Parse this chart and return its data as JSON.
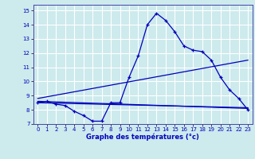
{
  "xlabel": "Graphe des températures (°c)",
  "xlim": [
    -0.5,
    23.5
  ],
  "ylim": [
    7,
    15.4
  ],
  "yticks": [
    7,
    8,
    9,
    10,
    11,
    12,
    13,
    14,
    15
  ],
  "xticks": [
    0,
    1,
    2,
    3,
    4,
    5,
    6,
    7,
    8,
    9,
    10,
    11,
    12,
    13,
    14,
    15,
    16,
    17,
    18,
    19,
    20,
    21,
    22,
    23
  ],
  "bg_color": "#cdeaed",
  "grid_color": "#ffffff",
  "line_color": "#0000bb",
  "lines": [
    {
      "x": [
        0,
        1,
        2,
        3,
        4,
        5,
        6,
        7,
        8,
        9,
        10,
        11,
        12,
        13,
        14,
        15,
        16,
        17,
        18,
        19,
        20,
        21,
        22,
        23
      ],
      "y": [
        8.5,
        8.6,
        8.4,
        8.3,
        7.9,
        7.6,
        7.2,
        7.2,
        8.5,
        8.5,
        10.3,
        11.8,
        14.0,
        14.8,
        14.3,
        13.5,
        12.5,
        12.2,
        12.1,
        11.5,
        10.3,
        9.4,
        8.8,
        8.0
      ],
      "marker": true
    },
    {
      "x": [
        0,
        23
      ],
      "y": [
        8.6,
        8.1
      ],
      "marker": false
    },
    {
      "x": [
        0,
        23
      ],
      "y": [
        8.8,
        11.5
      ],
      "marker": false
    },
    {
      "x": [
        0,
        23
      ],
      "y": [
        8.5,
        8.15
      ],
      "marker": false
    }
  ]
}
